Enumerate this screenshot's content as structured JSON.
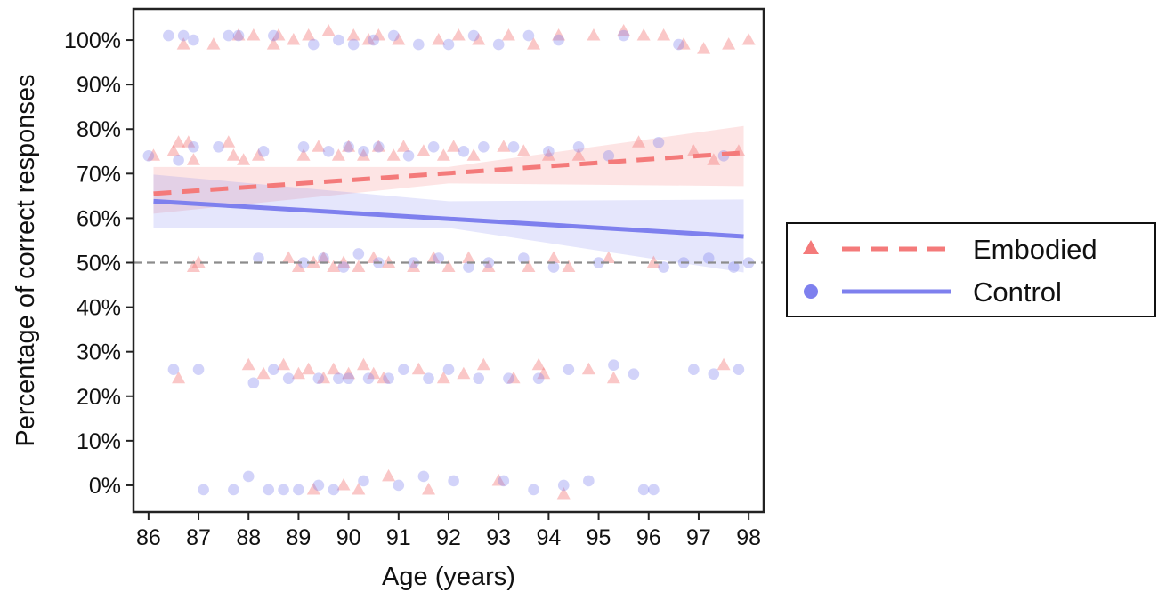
{
  "chart_data": {
    "type": "scatter",
    "xlabel": "Age (years)",
    "ylabel": "Percentage of correct responses",
    "xlim": [
      85.7,
      98.3
    ],
    "ylim": [
      -6,
      107
    ],
    "xticks": [
      86,
      87,
      88,
      89,
      90,
      91,
      92,
      93,
      94,
      95,
      96,
      97,
      98
    ],
    "xtick_labels": [
      "86",
      "87",
      "88",
      "89",
      "90",
      "91",
      "92",
      "93",
      "94",
      "95",
      "96",
      "97",
      "98"
    ],
    "yticks": [
      0,
      10,
      20,
      30,
      40,
      50,
      60,
      70,
      80,
      90,
      100
    ],
    "ytick_labels": [
      "0%",
      "10%",
      "20%",
      "30%",
      "40%",
      "50%",
      "60%",
      "70%",
      "80%",
      "90%",
      "100%"
    ],
    "reference_line": {
      "y": 50,
      "style": "dashed",
      "color": "#8c8c8c"
    },
    "legend_position": "outside-right",
    "series": [
      {
        "name": "Embodied",
        "marker": "triangle",
        "line_style": "dashed",
        "color": "#f47a7a",
        "fit": {
          "x": [
            86.1,
            97.9
          ],
          "y": [
            65.5,
            74.7
          ]
        },
        "ci_band": {
          "x": [
            86.1,
            92.0,
            97.9
          ],
          "lower": [
            61.0,
            67.8,
            67.2
          ],
          "upper": [
            71.5,
            71.5,
            80.7
          ]
        },
        "points": [
          [
            86.1,
            74
          ],
          [
            86.5,
            75
          ],
          [
            86.6,
            24
          ],
          [
            86.6,
            77
          ],
          [
            86.7,
            99
          ],
          [
            86.8,
            77
          ],
          [
            86.9,
            49
          ],
          [
            86.9,
            73
          ],
          [
            87.0,
            50
          ],
          [
            87.3,
            99
          ],
          [
            87.6,
            77
          ],
          [
            87.7,
            74
          ],
          [
            87.8,
            101
          ],
          [
            87.9,
            73
          ],
          [
            88.0,
            27
          ],
          [
            88.1,
            101
          ],
          [
            88.2,
            74
          ],
          [
            88.3,
            25
          ],
          [
            88.5,
            99
          ],
          [
            88.6,
            101
          ],
          [
            88.7,
            27
          ],
          [
            88.8,
            51
          ],
          [
            88.9,
            100
          ],
          [
            89.0,
            25
          ],
          [
            89.0,
            49
          ],
          [
            89.1,
            74
          ],
          [
            89.2,
            26
          ],
          [
            89.2,
            101
          ],
          [
            89.3,
            -1
          ],
          [
            89.3,
            50
          ],
          [
            89.4,
            76
          ],
          [
            89.5,
            24
          ],
          [
            89.5,
            51
          ],
          [
            89.6,
            102
          ],
          [
            89.7,
            26
          ],
          [
            89.7,
            49
          ],
          [
            89.8,
            74
          ],
          [
            89.9,
            0
          ],
          [
            89.9,
            50
          ],
          [
            90.0,
            25
          ],
          [
            90.0,
            76
          ],
          [
            90.1,
            101
          ],
          [
            90.2,
            -1
          ],
          [
            90.2,
            49
          ],
          [
            90.3,
            27
          ],
          [
            90.3,
            74
          ],
          [
            90.4,
            100
          ],
          [
            90.5,
            51
          ],
          [
            90.5,
            25
          ],
          [
            90.6,
            76
          ],
          [
            90.6,
            101
          ],
          [
            90.7,
            24
          ],
          [
            90.8,
            2
          ],
          [
            90.8,
            50
          ],
          [
            90.9,
            74
          ],
          [
            91.0,
            100
          ],
          [
            91.1,
            76
          ],
          [
            91.3,
            49
          ],
          [
            91.4,
            26
          ],
          [
            91.5,
            75
          ],
          [
            91.6,
            -1
          ],
          [
            91.7,
            51
          ],
          [
            91.8,
            100
          ],
          [
            91.9,
            24
          ],
          [
            91.9,
            74
          ],
          [
            92.0,
            49
          ],
          [
            92.1,
            76
          ],
          [
            92.2,
            101
          ],
          [
            92.3,
            25
          ],
          [
            92.4,
            51
          ],
          [
            92.5,
            74
          ],
          [
            92.6,
            100
          ],
          [
            92.7,
            27
          ],
          [
            92.8,
            49
          ],
          [
            93.0,
            1
          ],
          [
            93.1,
            76
          ],
          [
            93.2,
            101
          ],
          [
            93.3,
            24
          ],
          [
            93.5,
            75
          ],
          [
            93.6,
            49
          ],
          [
            93.7,
            99
          ],
          [
            93.8,
            27
          ],
          [
            93.9,
            25
          ],
          [
            94.0,
            74
          ],
          [
            94.1,
            51
          ],
          [
            94.2,
            101
          ],
          [
            94.3,
            -2
          ],
          [
            94.4,
            49
          ],
          [
            94.6,
            74
          ],
          [
            94.8,
            26
          ],
          [
            94.9,
            101
          ],
          [
            95.2,
            51
          ],
          [
            95.3,
            24
          ],
          [
            95.5,
            102
          ],
          [
            95.8,
            77
          ],
          [
            95.9,
            101
          ],
          [
            96.1,
            50
          ],
          [
            96.3,
            101
          ],
          [
            96.7,
            99
          ],
          [
            96.9,
            75
          ],
          [
            97.1,
            98
          ],
          [
            97.3,
            73
          ],
          [
            97.5,
            27
          ],
          [
            97.6,
            99
          ],
          [
            97.8,
            75
          ],
          [
            98.0,
            100
          ]
        ]
      },
      {
        "name": "Control",
        "marker": "circle",
        "line_style": "solid",
        "color": "#7e80ee",
        "fit": {
          "x": [
            86.1,
            97.9
          ],
          "y": [
            63.8,
            55.9
          ]
        },
        "ci_band": {
          "x": [
            86.1,
            92.0,
            97.9
          ],
          "lower": [
            57.8,
            57.8,
            47.8
          ],
          "upper": [
            69.8,
            63.8,
            64.2
          ]
        },
        "points": [
          [
            86.0,
            74
          ],
          [
            86.4,
            101
          ],
          [
            86.5,
            26
          ],
          [
            86.6,
            73
          ],
          [
            86.7,
            101
          ],
          [
            86.9,
            76
          ],
          [
            86.9,
            100
          ],
          [
            87.0,
            26
          ],
          [
            87.1,
            -1
          ],
          [
            87.4,
            76
          ],
          [
            87.6,
            101
          ],
          [
            87.7,
            -1
          ],
          [
            87.8,
            101
          ],
          [
            88.0,
            2
          ],
          [
            88.1,
            23
          ],
          [
            88.2,
            51
          ],
          [
            88.3,
            75
          ],
          [
            88.4,
            -1
          ],
          [
            88.5,
            101
          ],
          [
            88.5,
            26
          ],
          [
            88.7,
            -1
          ],
          [
            88.8,
            24
          ],
          [
            89.0,
            -1
          ],
          [
            89.1,
            76
          ],
          [
            89.1,
            50
          ],
          [
            89.3,
            99
          ],
          [
            89.4,
            24
          ],
          [
            89.4,
            0
          ],
          [
            89.5,
            51
          ],
          [
            89.6,
            75
          ],
          [
            89.7,
            -1
          ],
          [
            89.8,
            100
          ],
          [
            89.8,
            24
          ],
          [
            89.9,
            49
          ],
          [
            90.0,
            76
          ],
          [
            90.0,
            24
          ],
          [
            90.1,
            99
          ],
          [
            90.2,
            52
          ],
          [
            90.3,
            1
          ],
          [
            90.3,
            75
          ],
          [
            90.4,
            24
          ],
          [
            90.5,
            100
          ],
          [
            90.6,
            50
          ],
          [
            90.6,
            76
          ],
          [
            90.8,
            24
          ],
          [
            90.9,
            101
          ],
          [
            91.0,
            0
          ],
          [
            91.1,
            26
          ],
          [
            91.2,
            74
          ],
          [
            91.3,
            50
          ],
          [
            91.4,
            99
          ],
          [
            91.5,
            2
          ],
          [
            91.6,
            24
          ],
          [
            91.7,
            76
          ],
          [
            91.8,
            51
          ],
          [
            92.0,
            99
          ],
          [
            92.0,
            26
          ],
          [
            92.1,
            1
          ],
          [
            92.3,
            75
          ],
          [
            92.4,
            49
          ],
          [
            92.5,
            101
          ],
          [
            92.6,
            24
          ],
          [
            92.7,
            76
          ],
          [
            92.8,
            50
          ],
          [
            93.0,
            99
          ],
          [
            93.1,
            1
          ],
          [
            93.2,
            24
          ],
          [
            93.3,
            76
          ],
          [
            93.5,
            51
          ],
          [
            93.6,
            101
          ],
          [
            93.7,
            -1
          ],
          [
            93.8,
            24
          ],
          [
            94.0,
            75
          ],
          [
            94.1,
            49
          ],
          [
            94.2,
            100
          ],
          [
            94.3,
            0
          ],
          [
            94.4,
            26
          ],
          [
            94.6,
            76
          ],
          [
            94.8,
            1
          ],
          [
            95.0,
            50
          ],
          [
            95.2,
            74
          ],
          [
            95.3,
            27
          ],
          [
            95.5,
            101
          ],
          [
            95.7,
            25
          ],
          [
            95.9,
            -1
          ],
          [
            96.1,
            -1
          ],
          [
            96.2,
            77
          ],
          [
            96.3,
            49
          ],
          [
            96.6,
            99
          ],
          [
            96.7,
            50
          ],
          [
            96.9,
            26
          ],
          [
            97.2,
            51
          ],
          [
            97.3,
            25
          ],
          [
            97.5,
            74
          ],
          [
            97.7,
            49
          ],
          [
            97.8,
            26
          ],
          [
            98.0,
            50
          ]
        ]
      }
    ]
  }
}
